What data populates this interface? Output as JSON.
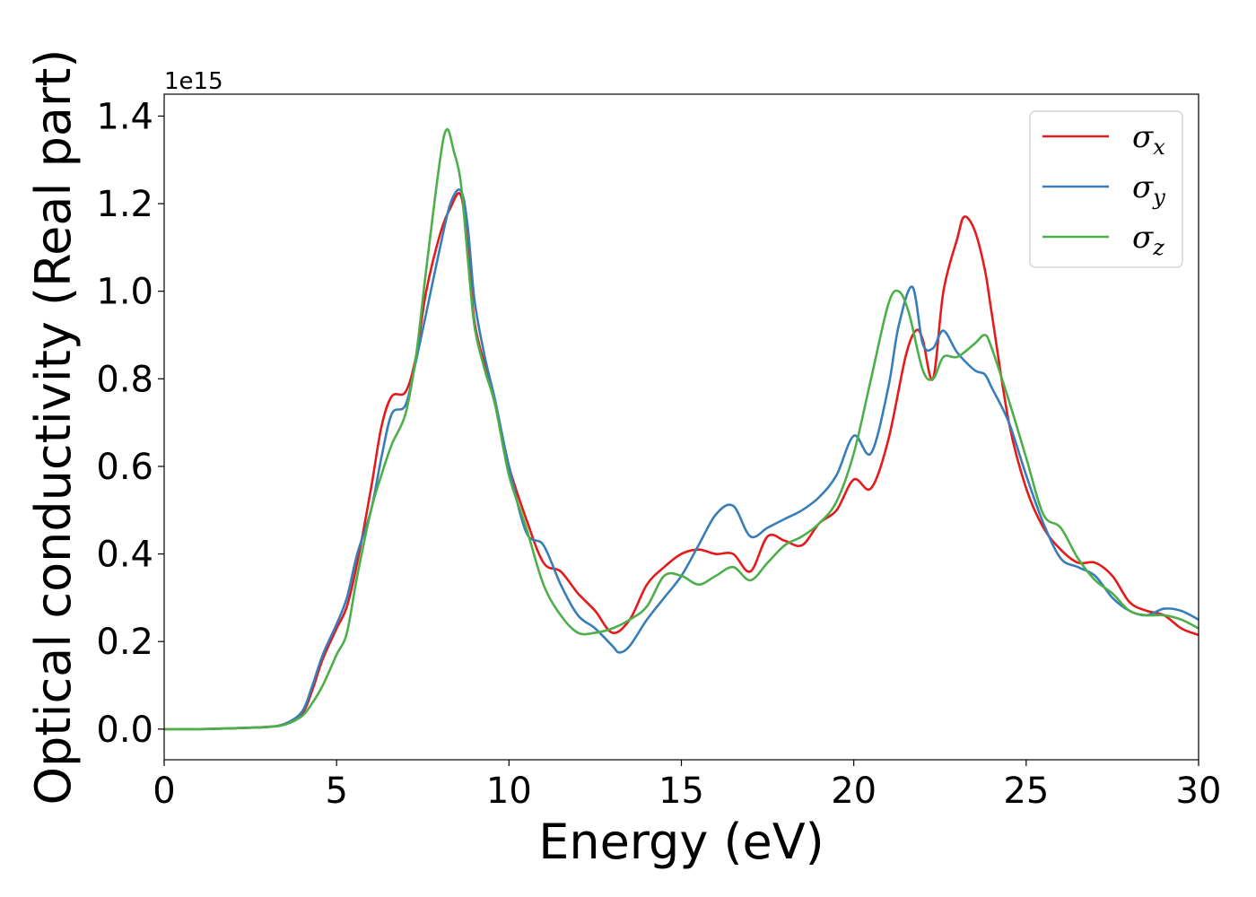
{
  "chart_data": {
    "type": "line",
    "xlabel": "Energy (eV)",
    "ylabel": "Optical conductivity (Real part)",
    "y_offset_label": "1e15",
    "xlim": [
      0,
      30
    ],
    "ylim": [
      -0.07,
      1.45
    ],
    "xticks": [
      "0",
      "5",
      "10",
      "15",
      "20",
      "25",
      "30"
    ],
    "yticks": [
      "0.0",
      "0.2",
      "0.4",
      "0.6",
      "0.8",
      "1.0",
      "1.2",
      "1.4"
    ],
    "grid": false,
    "legend_position": "top-right",
    "series": [
      {
        "name": "σx",
        "symbol": "σ",
        "subscript": "x",
        "color": "#e41a1c",
        "x": [
          0,
          1,
          2,
          3,
          3.5,
          4,
          4.3,
          4.6,
          5,
          5.3,
          5.6,
          6,
          6.3,
          6.6,
          7,
          7.3,
          7.6,
          8,
          8.3,
          8.6,
          8.8,
          9,
          9.3,
          9.6,
          10,
          10.5,
          11,
          11.5,
          12,
          12.5,
          13,
          13.5,
          14,
          14.5,
          15,
          15.5,
          16,
          16.5,
          17,
          17.5,
          18,
          18.5,
          19,
          19.5,
          20,
          20.5,
          21,
          21.5,
          21.8,
          22,
          22.3,
          22.6,
          23,
          23.2,
          23.5,
          23.8,
          24,
          24.5,
          25,
          25.5,
          26,
          26.5,
          27,
          27.5,
          28,
          28.5,
          29,
          29.5,
          30
        ],
        "y": [
          0,
          0,
          0.002,
          0.005,
          0.012,
          0.035,
          0.09,
          0.16,
          0.23,
          0.28,
          0.38,
          0.55,
          0.69,
          0.76,
          0.77,
          0.85,
          1.0,
          1.13,
          1.19,
          1.22,
          1.1,
          0.93,
          0.83,
          0.74,
          0.6,
          0.48,
          0.38,
          0.36,
          0.31,
          0.27,
          0.22,
          0.25,
          0.33,
          0.37,
          0.4,
          0.41,
          0.4,
          0.4,
          0.36,
          0.44,
          0.43,
          0.42,
          0.47,
          0.5,
          0.57,
          0.55,
          0.66,
          0.85,
          0.91,
          0.89,
          0.8,
          1.0,
          1.12,
          1.17,
          1.14,
          1.05,
          0.95,
          0.7,
          0.55,
          0.46,
          0.41,
          0.38,
          0.38,
          0.35,
          0.29,
          0.27,
          0.26,
          0.23,
          0.215
        ]
      },
      {
        "name": "σy",
        "symbol": "σ",
        "subscript": "y",
        "color": "#377eb8",
        "x": [
          0,
          1,
          2,
          3,
          3.5,
          4,
          4.3,
          4.6,
          5,
          5.3,
          5.6,
          6,
          6.3,
          6.6,
          7,
          7.3,
          7.6,
          8,
          8.3,
          8.6,
          8.8,
          9,
          9.3,
          9.6,
          10,
          10.5,
          11,
          11.5,
          12,
          12.5,
          13,
          13.2,
          13.5,
          14,
          14.5,
          15,
          15.5,
          16,
          16.5,
          17,
          17.5,
          18,
          18.5,
          19,
          19.5,
          20,
          20.5,
          21,
          21.3,
          21.7,
          22,
          22.3,
          22.6,
          23,
          23.5,
          23.8,
          24,
          24.5,
          25,
          25.5,
          26,
          26.5,
          27,
          27.5,
          28,
          28.5,
          29,
          29.5,
          30
        ],
        "y": [
          0,
          0,
          0.002,
          0.005,
          0.012,
          0.04,
          0.1,
          0.17,
          0.24,
          0.3,
          0.4,
          0.5,
          0.62,
          0.72,
          0.74,
          0.84,
          0.95,
          1.1,
          1.2,
          1.23,
          1.15,
          0.98,
          0.85,
          0.75,
          0.6,
          0.45,
          0.42,
          0.33,
          0.26,
          0.23,
          0.19,
          0.175,
          0.19,
          0.25,
          0.3,
          0.35,
          0.42,
          0.49,
          0.51,
          0.44,
          0.46,
          0.48,
          0.5,
          0.53,
          0.58,
          0.67,
          0.63,
          0.78,
          0.92,
          1.01,
          0.88,
          0.87,
          0.91,
          0.86,
          0.82,
          0.81,
          0.78,
          0.7,
          0.58,
          0.47,
          0.39,
          0.37,
          0.35,
          0.3,
          0.27,
          0.26,
          0.275,
          0.27,
          0.25
        ]
      },
      {
        "name": "σz",
        "symbol": "σ",
        "subscript": "z",
        "color": "#4daf4a",
        "x": [
          0,
          1,
          2,
          3,
          3.5,
          4,
          4.3,
          4.6,
          5,
          5.3,
          5.6,
          6,
          6.3,
          6.6,
          7,
          7.3,
          7.6,
          8,
          8.2,
          8.4,
          8.6,
          8.8,
          9,
          9.3,
          9.6,
          10,
          10.5,
          11,
          11.5,
          12,
          12.5,
          13,
          13.5,
          14,
          14.5,
          15,
          15.5,
          16,
          16.5,
          17,
          17.5,
          18,
          18.5,
          19,
          19.5,
          20,
          20.5,
          21,
          21.3,
          21.6,
          22,
          22.3,
          22.6,
          23,
          23.5,
          23.8,
          24,
          24.5,
          25,
          25.5,
          26,
          26.5,
          27,
          27.5,
          28,
          28.5,
          29,
          29.5,
          30
        ],
        "y": [
          0,
          0,
          0.002,
          0.005,
          0.01,
          0.03,
          0.06,
          0.1,
          0.17,
          0.22,
          0.35,
          0.5,
          0.58,
          0.65,
          0.72,
          0.85,
          1.05,
          1.3,
          1.37,
          1.32,
          1.25,
          1.08,
          0.92,
          0.82,
          0.74,
          0.58,
          0.46,
          0.33,
          0.26,
          0.22,
          0.22,
          0.23,
          0.25,
          0.28,
          0.35,
          0.35,
          0.33,
          0.35,
          0.37,
          0.34,
          0.38,
          0.42,
          0.44,
          0.47,
          0.52,
          0.63,
          0.8,
          0.97,
          1.0,
          0.95,
          0.82,
          0.8,
          0.85,
          0.85,
          0.88,
          0.9,
          0.87,
          0.75,
          0.62,
          0.49,
          0.46,
          0.39,
          0.34,
          0.31,
          0.27,
          0.26,
          0.26,
          0.25,
          0.23
        ]
      }
    ]
  }
}
